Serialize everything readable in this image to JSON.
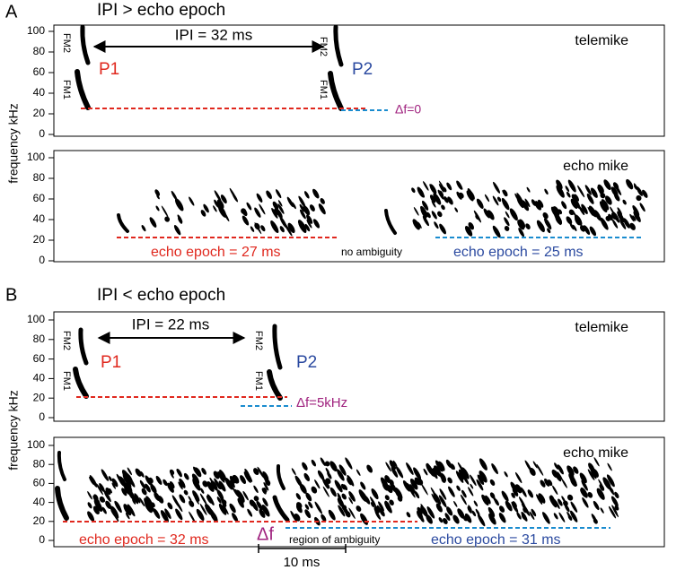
{
  "y_axis_label": "frequency kHz",
  "panels": [
    {
      "label": "A",
      "title": "IPI > echo epoch",
      "telemike": {
        "name": "telemike",
        "yticks": [
          0,
          20,
          40,
          60,
          80,
          100
        ],
        "ipi": "IPI = 32 ms",
        "p1": "P1",
        "p2": "P2",
        "fm2": "FM2",
        "fm1": "FM1",
        "delta_f": "Δf=0"
      },
      "echo": {
        "name": "echo mike",
        "yticks": [
          0,
          20,
          40,
          60,
          80,
          100
        ],
        "left_epoch": "echo epoch = 27 ms",
        "middle": "no ambiguity",
        "right_epoch": "echo epoch = 25 ms"
      }
    },
    {
      "label": "B",
      "title": "IPI < echo epoch",
      "telemike": {
        "name": "telemike",
        "yticks": [
          0,
          20,
          40,
          60,
          80,
          100
        ],
        "ipi": "IPI = 22 ms",
        "p1": "P1",
        "p2": "P2",
        "fm2": "FM2",
        "fm1": "FM1",
        "delta_f": "Δf=5kHz"
      },
      "echo": {
        "name": "echo mike",
        "yticks": [
          0,
          20,
          40,
          60,
          80,
          100
        ],
        "left_epoch": "echo epoch = 32 ms",
        "delta": "Δf",
        "middle": "region of ambiguity",
        "right_epoch": "echo epoch = 31 ms",
        "scale_bar": "10 ms"
      }
    }
  ]
}
